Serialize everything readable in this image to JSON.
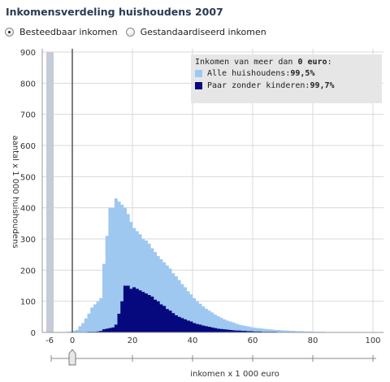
{
  "page_title": "Inkomensverdeling huishoudens 2007",
  "income_type": {
    "options": [
      {
        "label": "Besteedbaar inkomen",
        "selected": true
      },
      {
        "label": "Gestandaardiseerd inkomen",
        "selected": false
      }
    ]
  },
  "legend": {
    "prefix": "Inkomen van meer dan ",
    "threshold": "0 euro",
    "suffix": ":",
    "items": [
      {
        "label": "Alle huishoudens: ",
        "pct": "99,5%",
        "color": "#9ec8f0"
      },
      {
        "label": "Paar zonder kinderen: ",
        "pct": "99,7%",
        "color": "#06087e"
      }
    ]
  },
  "slider": {
    "value": 0
  },
  "chart_data": {
    "type": "bar",
    "xlabel": "inkomen x 1 000 euro",
    "ylabel": "aantal x 1 000 huishoudens",
    "xlim": [
      -6,
      100
    ],
    "ylim": [
      0,
      900
    ],
    "xticks": [
      -6,
      0,
      20,
      40,
      60,
      80,
      100
    ],
    "yticks": [
      0,
      100,
      200,
      300,
      400,
      500,
      600,
      700,
      800,
      900
    ],
    "grid": true,
    "bin_width": 1,
    "overflow_bar": {
      "x": -6,
      "label": "< -6",
      "value": 900
    },
    "series": [
      {
        "name": "Alle huishoudens",
        "color": "#9ec8f0",
        "x": [
          -6,
          -5,
          -4,
          -3,
          -2,
          -1,
          0,
          1,
          2,
          3,
          4,
          5,
          6,
          7,
          8,
          9,
          10,
          11,
          12,
          13,
          14,
          15,
          16,
          17,
          18,
          19,
          20,
          21,
          22,
          23,
          24,
          25,
          26,
          27,
          28,
          29,
          30,
          31,
          32,
          33,
          34,
          35,
          36,
          37,
          38,
          39,
          40,
          41,
          42,
          43,
          44,
          45,
          46,
          47,
          48,
          49,
          50,
          51,
          52,
          53,
          54,
          55,
          56,
          57,
          58,
          59,
          60,
          61,
          62,
          63,
          64,
          65,
          66,
          67,
          68,
          69,
          70,
          71,
          72,
          73,
          74,
          75,
          76,
          77,
          78,
          79,
          80,
          81,
          82,
          83,
          84,
          85,
          86,
          87,
          88,
          89,
          90,
          91,
          92,
          93,
          94,
          95,
          96,
          97,
          98,
          99
        ],
        "values": [
          0,
          0,
          0,
          0,
          2,
          3,
          5,
          8,
          20,
          30,
          45,
          60,
          80,
          90,
          100,
          110,
          220,
          310,
          400,
          400,
          430,
          420,
          410,
          400,
          380,
          355,
          335,
          325,
          315,
          300,
          295,
          285,
          270,
          258,
          245,
          235,
          225,
          215,
          205,
          190,
          180,
          168,
          155,
          145,
          132,
          122,
          110,
          100,
          92,
          84,
          76,
          70,
          64,
          57,
          52,
          47,
          42,
          38,
          35,
          32,
          28,
          25,
          23,
          21,
          19,
          17,
          15,
          14,
          13,
          12,
          11,
          10,
          9,
          8,
          8,
          7,
          6,
          6,
          5,
          5,
          4,
          4,
          4,
          3,
          3,
          3,
          2,
          2,
          2,
          2,
          1,
          1,
          1,
          1,
          1,
          1,
          1,
          1,
          1,
          1,
          0,
          0,
          0,
          0,
          0,
          0
        ]
      },
      {
        "name": "Paar zonder kinderen",
        "color": "#06087e",
        "x": [
          -6,
          -5,
          -4,
          -3,
          -2,
          -1,
          0,
          1,
          2,
          3,
          4,
          5,
          6,
          7,
          8,
          9,
          10,
          11,
          12,
          13,
          14,
          15,
          16,
          17,
          18,
          19,
          20,
          21,
          22,
          23,
          24,
          25,
          26,
          27,
          28,
          29,
          30,
          31,
          32,
          33,
          34,
          35,
          36,
          37,
          38,
          39,
          40,
          41,
          42,
          43,
          44,
          45,
          46,
          47,
          48,
          49,
          50,
          51,
          52,
          53,
          54,
          55,
          56,
          57,
          58,
          59,
          60,
          61,
          62,
          63,
          64,
          65,
          66,
          67,
          68,
          69,
          70,
          71,
          72,
          73,
          74,
          75,
          76,
          77,
          78,
          79,
          80,
          81,
          82,
          83,
          84,
          85,
          86,
          87,
          88,
          89,
          90,
          91,
          92,
          93,
          94,
          95,
          96,
          97,
          98,
          99
        ],
        "values": [
          0,
          0,
          0,
          0,
          0,
          0,
          0,
          0,
          1,
          1,
          1,
          2,
          2,
          2,
          3,
          5,
          10,
          12,
          14,
          16,
          25,
          60,
          100,
          150,
          150,
          140,
          145,
          140,
          135,
          130,
          125,
          120,
          115,
          105,
          100,
          90,
          85,
          75,
          70,
          62,
          55,
          50,
          46,
          42,
          38,
          35,
          30,
          27,
          25,
          22,
          20,
          18,
          16,
          14,
          12,
          11,
          10,
          9,
          8,
          7,
          6,
          6,
          5,
          5,
          4,
          4,
          3,
          3,
          3,
          2,
          2,
          2,
          2,
          2,
          1,
          1,
          1,
          1,
          1,
          1,
          1,
          1,
          1,
          1,
          0,
          0,
          0,
          0,
          0,
          0,
          0,
          0,
          0,
          0,
          0,
          0,
          0,
          0,
          0,
          0,
          0,
          0,
          0,
          0,
          0,
          0
        ]
      }
    ]
  }
}
